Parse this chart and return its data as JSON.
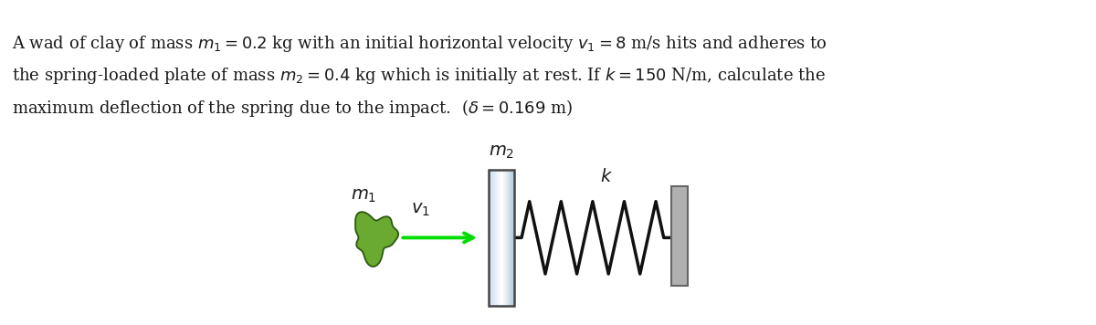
{
  "text_line1": "A wad of clay of mass $m_1 = 0.2$ kg with an initial horizontal velocity $v_1 = 8$ m/s hits and adheres to",
  "text_line2": "the spring-loaded plate of mass $m_2 = 0.4$ kg which is initially at rest. If $k = 150$ N/m, calculate the",
  "text_line3": "maximum deflection of the spring due to the impact.  ($\\delta = 0.169$ m)",
  "bg_color": "#ffffff",
  "text_color": "#1a1a1a",
  "text_fontsize": 13.0,
  "plate_color_light": "#cce0f0",
  "plate_color_mid": "#e8f4ff",
  "plate_edge_color": "#444444",
  "wall_color": "#b0b0b0",
  "wall_edge_color": "#666666",
  "clay_color_fill": "#6aaa30",
  "clay_color_edge": "#2a5a10",
  "arrow_color": "#00dd00",
  "spring_color": "#111111",
  "label_fontsize": 14
}
